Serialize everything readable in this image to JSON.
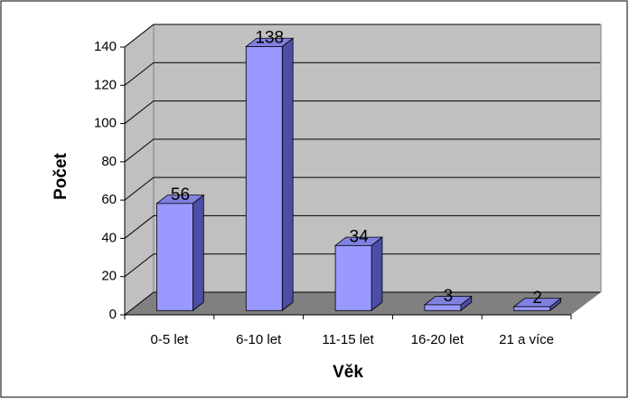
{
  "chart_data": {
    "type": "bar",
    "categories": [
      "0-5 let",
      "6-10 let",
      "11-15 let",
      "16-20 let",
      "21 a více"
    ],
    "values": [
      56,
      138,
      34,
      3,
      2
    ],
    "color": "#9999ff",
    "xlabel": "Věk",
    "ylabel": "Počet",
    "ylim": [
      0,
      140
    ],
    "yticks": [
      0,
      20,
      40,
      60,
      80,
      100,
      120,
      140
    ],
    "grid": true
  }
}
